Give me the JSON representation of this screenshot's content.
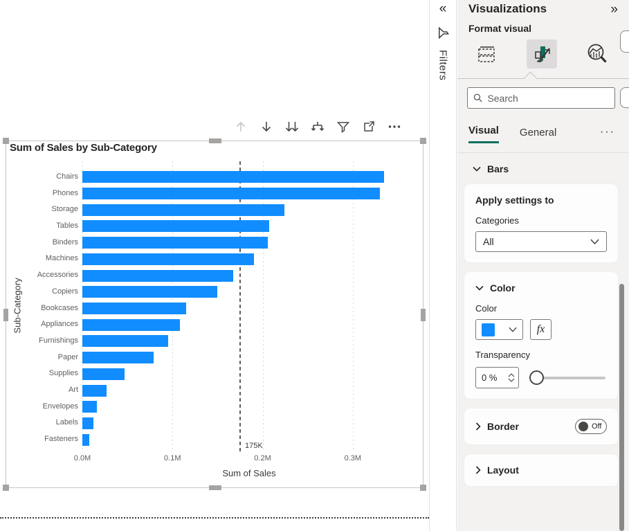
{
  "chart_data": {
    "type": "bar",
    "orientation": "horizontal",
    "title": "Sum of Sales by Sub-Category",
    "xlabel": "Sum of Sales",
    "ylabel": "Sub-Category",
    "categories": [
      "Chairs",
      "Phones",
      "Storage",
      "Tables",
      "Binders",
      "Machines",
      "Accessories",
      "Copiers",
      "Bookcases",
      "Appliances",
      "Furnishings",
      "Paper",
      "Supplies",
      "Art",
      "Envelopes",
      "Labels",
      "Fasteners"
    ],
    "values": [
      335000,
      330000,
      224000,
      207000,
      206000,
      190000,
      167000,
      150000,
      115000,
      108000,
      95000,
      79000,
      47000,
      27000,
      16500,
      12500,
      8000
    ],
    "x_ticks": [
      {
        "value": 0,
        "label": "0.0M"
      },
      {
        "value": 100000,
        "label": "0.1M"
      },
      {
        "value": 200000,
        "label": "0.2M"
      },
      {
        "value": 300000,
        "label": "0.3M"
      }
    ],
    "xlim": [
      0,
      370000
    ],
    "reference_line": {
      "value": 175000,
      "label": "175K"
    },
    "bar_color": "#118DFF",
    "grid": true,
    "legend": "none"
  },
  "visual_toolbar": {
    "icons": [
      "drill-up",
      "drill-down",
      "go-to-next-level",
      "expand-all-down",
      "filter",
      "focus-mode",
      "more-options"
    ]
  },
  "filters_bar": {
    "collapse_label": "«",
    "label": "Filters"
  },
  "pane": {
    "title": "Visualizations",
    "expand_label": "»",
    "subtitle": "Format visual",
    "tools": [
      "build-visual",
      "format-visual",
      "analytics"
    ],
    "search_placeholder": "Search",
    "tabs": {
      "visual": "Visual",
      "general": "General",
      "more": "···"
    },
    "bars_section": {
      "label": "Bars"
    },
    "apply_card": {
      "heading": "Apply settings to",
      "field_label": "Categories",
      "dropdown_value": "All"
    },
    "color_card": {
      "label": "Color",
      "color_label": "Color",
      "swatch_color": "#118DFF",
      "fx_label": "fx",
      "transparency_label": "Transparency",
      "transparency_value": "0 %"
    },
    "border_card": {
      "label": "Border",
      "toggle_state": "Off"
    },
    "layout_card": {
      "label": "Layout"
    }
  },
  "colors": {
    "accent_teal": "#0E6E5E",
    "bar_blue": "#118DFF",
    "pane_bg": "#F3F2F1"
  }
}
